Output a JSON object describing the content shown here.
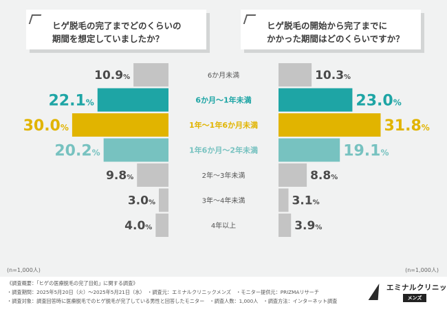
{
  "headers": {
    "left": [
      "ヒゲ脱毛の完了までどのくらいの",
      "期間を想定していましたか？"
    ],
    "right": [
      "ヒゲ脱毛の開始から完了までに",
      "かかった期間はどのくらいですか？"
    ]
  },
  "notes": {
    "left": "(n=1,000人)",
    "right": "(n=1,000人)"
  },
  "footer": [
    "《調査概要：「ヒゲの医療脱毛の完了目処」に関する調査》",
    "・調査期間：2025年5月20日（火）〜2025年5月21日（水）　・調査元：エミナルクリニックメンズ　・モニター提供元：PRIZMAリサーチ",
    "・調査対象：調査回答時に医療脱毛でのヒゲ脱毛が完了している男性と回答したモニター　・調査人数：1,000人　・調査方法：インターネット調査"
  ],
  "logo": {
    "name": "エミナルクリニック",
    "sub": "メンズ"
  },
  "colors": {
    "gray": "#c4c4c4",
    "teal": "#1ea5a5",
    "gold": "#e1b400",
    "light_teal": "#77c2c0"
  },
  "chart_data": {
    "type": "bar",
    "orientation": "horizontal-butterfly",
    "categories": [
      "6か月未満",
      "6か月〜1年未満",
      "1年〜1年6か月未満",
      "1年6か月〜2年未満",
      "2年〜3年未満",
      "3年〜4年未満",
      "4年以上"
    ],
    "category_colors": [
      "#c4c4c4",
      "#1ea5a5",
      "#e1b400",
      "#77c2c0",
      "#c4c4c4",
      "#c4c4c4",
      "#c4c4c4"
    ],
    "series": [
      {
        "values": [
          10.9,
          22.1,
          30.0,
          20.2,
          9.8,
          3.0,
          4.0
        ],
        "labels": [
          "10.9%",
          "22.1%",
          "30.0%",
          "20.2%",
          "9.8%",
          "3.0%",
          "4.0%"
        ]
      },
      {
        "values": [
          10.3,
          23.0,
          31.8,
          19.1,
          8.8,
          3.1,
          3.9
        ],
        "labels": [
          "10.3%",
          "23.0%",
          "31.8%",
          "19.1%",
          "8.8%",
          "3.1%",
          "3.9%"
        ]
      }
    ],
    "unit": "%"
  }
}
